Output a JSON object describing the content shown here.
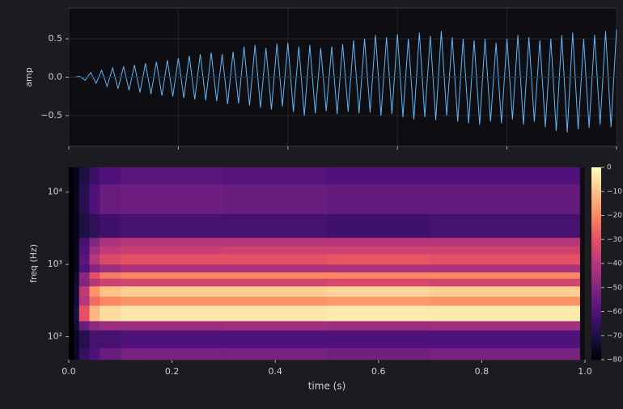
{
  "chart_data": [
    {
      "type": "line",
      "ylabel": "amp",
      "color": "#62b6f7",
      "xlim": [
        0,
        1.0
      ],
      "ylim": [
        -0.9,
        0.9
      ],
      "xticks": [
        0,
        0.2,
        0.4,
        0.6,
        0.8,
        1.0
      ],
      "yticks": [
        {
          "value": -0.5,
          "label": "−0.5"
        },
        {
          "value": 0,
          "label": "0.0"
        },
        {
          "value": 0.5,
          "label": "0.5"
        }
      ],
      "grid": true,
      "x": [
        0,
        0.01,
        0.02,
        0.03,
        0.04,
        0.05,
        0.06,
        0.07,
        0.08,
        0.09,
        0.1,
        0.11,
        0.12,
        0.13,
        0.14,
        0.15,
        0.16,
        0.17,
        0.18,
        0.19,
        0.2,
        0.21,
        0.22,
        0.23,
        0.24,
        0.25,
        0.26,
        0.27,
        0.28,
        0.29,
        0.3,
        0.31,
        0.32,
        0.33,
        0.34,
        0.35,
        0.36,
        0.37,
        0.38,
        0.39,
        0.4,
        0.41,
        0.42,
        0.43,
        0.44,
        0.45,
        0.46,
        0.47,
        0.48,
        0.49,
        0.5,
        0.51,
        0.52,
        0.53,
        0.54,
        0.55,
        0.56,
        0.57,
        0.58,
        0.59,
        0.6,
        0.61,
        0.62,
        0.63,
        0.64,
        0.65,
        0.66,
        0.67,
        0.68,
        0.69,
        0.7,
        0.71,
        0.72,
        0.73,
        0.74,
        0.75,
        0.76,
        0.77,
        0.78,
        0.79,
        0.8,
        0.81,
        0.82,
        0.83,
        0.84,
        0.85,
        0.86,
        0.87,
        0.88,
        0.89,
        0.9,
        0.91,
        0.92,
        0.93,
        0.94,
        0.95,
        0.96,
        0.97,
        0.98,
        0.99,
        1.0
      ],
      "values": [
        0,
        0,
        0.01,
        -0.04,
        0.06,
        -0.08,
        0.09,
        -0.12,
        0.12,
        -0.15,
        0.14,
        -0.17,
        0.16,
        -0.2,
        0.18,
        -0.22,
        0.2,
        -0.24,
        0.22,
        -0.25,
        0.25,
        -0.27,
        0.28,
        -0.29,
        0.3,
        -0.3,
        0.32,
        -0.31,
        0.3,
        -0.35,
        0.33,
        -0.34,
        0.4,
        -0.37,
        0.42,
        -0.4,
        0.38,
        -0.42,
        0.44,
        -0.38,
        0.45,
        -0.45,
        0.4,
        -0.5,
        0.42,
        -0.47,
        0.38,
        -0.44,
        0.4,
        -0.48,
        0.43,
        -0.45,
        0.48,
        -0.47,
        0.5,
        -0.46,
        0.55,
        -0.5,
        0.52,
        -0.48,
        0.56,
        -0.52,
        0.5,
        -0.55,
        0.58,
        -0.52,
        0.54,
        -0.56,
        0.6,
        -0.5,
        0.52,
        -0.58,
        0.5,
        -0.6,
        0.48,
        -0.62,
        0.5,
        -0.58,
        0.45,
        -0.6,
        0.5,
        -0.55,
        0.55,
        -0.62,
        0.52,
        -0.58,
        0.48,
        -0.65,
        0.5,
        -0.7,
        0.55,
        -0.72,
        0.58,
        -0.68,
        0.5,
        -0.66,
        0.55,
        -0.62,
        0.6,
        -0.65,
        0.62
      ]
    },
    {
      "type": "heatmap",
      "xlabel": "time (s)",
      "ylabel": "freq (Hz)",
      "yscale": "log",
      "colormap": "magma",
      "xlim": [
        0,
        1.0
      ],
      "ylim": [
        48,
        22050
      ],
      "xticks": [
        {
          "value": 0,
          "label": "0.0"
        },
        0.2,
        0.4,
        0.6,
        0.8,
        {
          "value": 1.0,
          "label": "1.0"
        }
      ],
      "yticks": [
        {
          "value": 100,
          "label": "10²"
        },
        {
          "value": 1000,
          "label": "10³"
        },
        {
          "value": 10000,
          "label": "10⁴"
        }
      ],
      "x_edges": [
        0,
        0.01,
        0.02,
        0.04,
        0.06,
        0.1,
        0.3,
        0.5,
        0.7,
        0.99
      ],
      "y_edges": [
        48,
        70,
        123,
        165,
        270,
        360,
        500,
        640,
        780,
        1000,
        1400,
        1800,
        2350,
        5000,
        13000,
        22050
      ],
      "z": [
        [
          -80,
          -75,
          -65,
          -60,
          -55,
          -52,
          -52,
          -53,
          -52
        ],
        [
          -80,
          -75,
          -68,
          -62,
          -62,
          -60,
          -60,
          -60,
          -60
        ],
        [
          -80,
          -72,
          -55,
          -48,
          -45,
          -45,
          -44,
          -45,
          -44
        ],
        [
          -80,
          -70,
          -30,
          -12,
          -6,
          -4,
          -4,
          -3,
          -3
        ],
        [
          -80,
          -72,
          -40,
          -25,
          -20,
          -18,
          -18,
          -17,
          -18
        ],
        [
          -80,
          -72,
          -38,
          -18,
          -10,
          -8,
          -8,
          -7,
          -8
        ],
        [
          -80,
          -74,
          -50,
          -40,
          -35,
          -34,
          -34,
          -33,
          -34
        ],
        [
          -80,
          -74,
          -48,
          -30,
          -22,
          -20,
          -20,
          -20,
          -20
        ],
        [
          -80,
          -76,
          -60,
          -50,
          -45,
          -42,
          -42,
          -42,
          -42
        ],
        [
          -80,
          -76,
          -58,
          -40,
          -32,
          -30,
          -30,
          -29,
          -30
        ],
        [
          -80,
          -76,
          -60,
          -45,
          -38,
          -36,
          -35,
          -35,
          -35
        ],
        [
          -80,
          -77,
          -62,
          -50,
          -42,
          -40,
          -40,
          -40,
          -40
        ],
        [
          -80,
          -77,
          -70,
          -66,
          -63,
          -62,
          -62,
          -63,
          -62
        ],
        [
          -80,
          -76,
          -68,
          -60,
          -55,
          -54,
          -55,
          -56,
          -56
        ],
        [
          -80,
          -77,
          -70,
          -64,
          -60,
          -58,
          -59,
          -60,
          -60
        ]
      ],
      "zlim": [
        -80,
        0
      ],
      "zticks": [
        0,
        {
          "value": -10,
          "label": "−10"
        },
        {
          "value": -20,
          "label": "−20"
        },
        {
          "value": -30,
          "label": "−30"
        },
        {
          "value": -40,
          "label": "−40"
        },
        {
          "value": -50,
          "label": "−50"
        },
        {
          "value": -60,
          "label": "−60"
        },
        {
          "value": -70,
          "label": "−70"
        },
        {
          "value": -80,
          "label": "−80"
        }
      ]
    }
  ]
}
